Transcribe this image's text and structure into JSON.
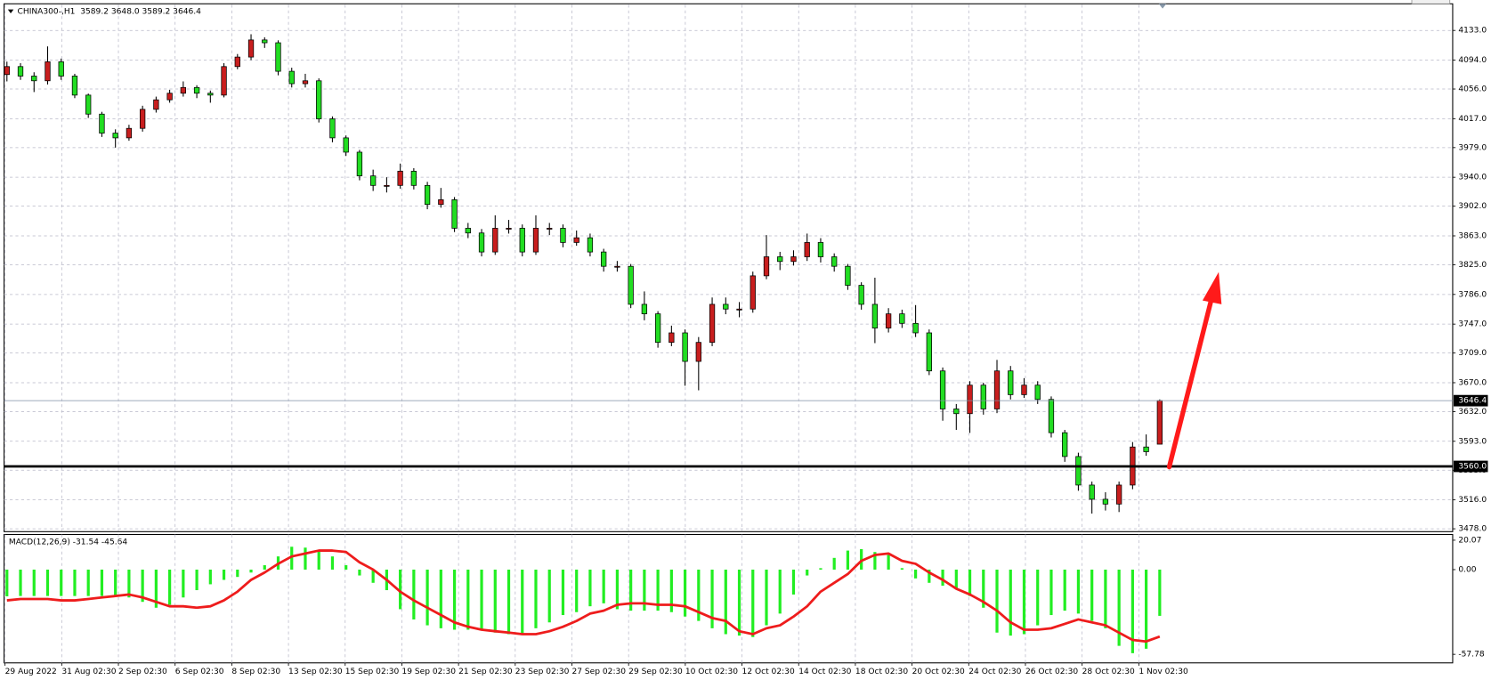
{
  "chart_data": [
    {
      "type": "candlestick",
      "title": "CHINA300-,H1  3589.2 3648.0 3589.2 3646.4",
      "x_labels": [
        "29 Aug 2022",
        "31 Aug 02:30",
        "2 Sep 02:30",
        "6 Sep 02:30",
        "8 Sep 02:30",
        "13 Sep 02:30",
        "15 Sep 02:30",
        "19 Sep 02:30",
        "21 Sep 02:30",
        "23 Sep 02:30",
        "27 Sep 02:30",
        "29 Sep 02:30",
        "10 Oct 02:30",
        "12 Oct 02:30",
        "14 Oct 02:30",
        "18 Oct 02:30",
        "20 Oct 02:30",
        "24 Oct 02:30",
        "26 Oct 02:30",
        "28 Oct 02:30",
        "1 Nov 02:30"
      ],
      "open": [
        4075,
        4085.5,
        4073,
        4066.8,
        4091.8,
        4073,
        4048,
        4023,
        3998,
        3991.8,
        4004.3,
        4029.3,
        4041.8,
        4050.5,
        4058,
        4050.5,
        4048,
        4085.5,
        4098,
        4120.5,
        4116.8,
        4079.3,
        4063,
        4066.8,
        4016.8,
        3991.8,
        3973,
        3941.8,
        3929.3,
        3929.3,
        3948,
        3929.3,
        3904.3,
        3910.5,
        3873,
        3866.8,
        3841.8,
        3873,
        3873,
        3841.8,
        3873,
        3873,
        3854.3,
        3860.5,
        3841.8,
        3823,
        3823,
        3773,
        3760.5,
        3723,
        3735.5,
        3698,
        3723,
        3773,
        3766.8,
        3766.8,
        3810.5,
        3835.5,
        3829.3,
        3835.5,
        3854.3,
        3835.5,
        3823,
        3798,
        3773,
        3741.8,
        3760.5,
        3748,
        3735.5,
        3685.5,
        3635.5,
        3629.3,
        3666.8,
        3635.5,
        3685.5,
        3654.3,
        3666.8,
        3648,
        3604.3,
        3573,
        3535.5,
        3516.8,
        3510.5,
        3535.5,
        3585.5,
        3589.2
      ],
      "high": [
        4092,
        4090,
        4078,
        4112,
        4096,
        4076,
        4050,
        4026,
        4003,
        4009,
        4034,
        4046,
        4055,
        4066,
        4061,
        4054,
        4090,
        4102,
        4128,
        4124,
        4120,
        4084,
        4076,
        4070,
        4020,
        3995,
        3976,
        3950,
        3940,
        3958,
        3952,
        3934,
        3926,
        3914,
        3880,
        3872,
        3890,
        3884,
        3878,
        3890,
        3880,
        3878,
        3870,
        3866,
        3846,
        3830,
        3826,
        3790,
        3764,
        3745,
        3740,
        3730,
        3782,
        3782,
        3776,
        3816,
        3864,
        3842,
        3844,
        3866,
        3860,
        3840,
        3826,
        3802,
        3808,
        3768,
        3766,
        3772,
        3740,
        3690,
        3642,
        3672,
        3670,
        3700,
        3692,
        3676,
        3672,
        3652,
        3608,
        3578,
        3540,
        3526,
        3540,
        3592,
        3602,
        3648.0
      ],
      "low": [
        4066,
        4068,
        4052,
        4062,
        4068,
        4044,
        4018,
        3993,
        3979,
        3988,
        4000,
        4025,
        4038,
        4046,
        4044,
        4038,
        4045,
        4082,
        4094,
        4110,
        4074,
        4058,
        4058,
        4012,
        3986,
        3968,
        3936,
        3922,
        3920,
        3925,
        3924,
        3898,
        3900,
        3868,
        3860,
        3836,
        3838,
        3866,
        3836,
        3838,
        3864,
        3848,
        3850,
        3836,
        3816,
        3816,
        3768,
        3752,
        3716,
        3718,
        3666,
        3660,
        3718,
        3760,
        3756,
        3762,
        3806,
        3818,
        3824,
        3830,
        3828,
        3816,
        3792,
        3766,
        3722,
        3736,
        3742,
        3730,
        3680,
        3620,
        3608,
        3604,
        3628,
        3630,
        3648,
        3650,
        3642,
        3598,
        3566,
        3528,
        3498,
        3502,
        3500,
        3530,
        3574,
        3589.2
      ],
      "close": [
        4085.5,
        4073,
        4066.8,
        4091.8,
        4073,
        4048,
        4023,
        3998,
        3991.8,
        4004.3,
        4029.3,
        4041.8,
        4050.5,
        4058,
        4050.5,
        4048,
        4085.5,
        4098,
        4120.5,
        4116.8,
        4079.3,
        4063,
        4066.8,
        4016.8,
        3991.8,
        3973,
        3941.8,
        3929.3,
        3929.3,
        3948,
        3929.3,
        3904.3,
        3910.5,
        3873,
        3866.8,
        3841.8,
        3873,
        3873,
        3841.8,
        3873,
        3873,
        3854.3,
        3860.5,
        3841.8,
        3823,
        3823,
        3773,
        3760.5,
        3723,
        3735.5,
        3698,
        3723,
        3773,
        3766.8,
        3766.8,
        3810.5,
        3835.5,
        3829.3,
        3835.5,
        3854.3,
        3835.5,
        3823,
        3798,
        3773,
        3741.8,
        3760.5,
        3748,
        3735.5,
        3685.5,
        3635.5,
        3629.3,
        3666.8,
        3635.5,
        3685.5,
        3654.3,
        3666.8,
        3648,
        3604.3,
        3573,
        3535.5,
        3516.8,
        3510.5,
        3535.5,
        3585.5,
        3579.3,
        3646.4
      ],
      "up_color": "#c81e1e",
      "down_color": "#22dd22",
      "ylim": [
        3475.5,
        4166.75
      ],
      "yticks": [
        {
          "value": 4133,
          "label": "4133.0"
        },
        {
          "value": 4094,
          "label": "4094.0"
        },
        {
          "value": 4056,
          "label": "4056.0"
        },
        {
          "value": 4017,
          "label": "4017.0"
        },
        {
          "value": 3979,
          "label": "3979.0"
        },
        {
          "value": 3940,
          "label": "3940.0"
        },
        {
          "value": 3902,
          "label": "3902.0"
        },
        {
          "value": 3863,
          "label": "3863.0"
        },
        {
          "value": 3825,
          "label": "3825.0"
        },
        {
          "value": 3786,
          "label": "3786.0"
        },
        {
          "value": 3747,
          "label": "3747.0"
        },
        {
          "value": 3709,
          "label": "3709.0"
        },
        {
          "value": 3670,
          "label": "3670.0"
        },
        {
          "value": 3632,
          "label": "3632.0"
        },
        {
          "value": 3593,
          "label": "3593.0"
        },
        {
          "value": 3555,
          "label": "3555.0"
        },
        {
          "value": 3516,
          "label": "3516.0"
        },
        {
          "value": 3478,
          "label": "3478.0"
        }
      ],
      "grid": true,
      "hline": {
        "value": 3560,
        "label": "3560.0"
      },
      "last_price": 3646.4
    },
    {
      "type": "macd",
      "title": "MACD(12,26,9) -31.54 -45.64",
      "series": [
        {
          "type": "bar",
          "color": "#22ee22",
          "values": [
            -18.2,
            -18,
            -18,
            -18,
            -18,
            -18,
            -18,
            -18,
            -18,
            -19,
            -22,
            -26,
            -24,
            -19,
            -14,
            -10,
            -7,
            -5,
            -2,
            3,
            9,
            15.6,
            15,
            13,
            9,
            3,
            -4,
            -9,
            -14,
            -27,
            -34,
            -38,
            -40,
            -41,
            -41,
            -41,
            -43,
            -44,
            -44,
            -40,
            -36,
            -31,
            -29,
            -25,
            -23,
            -27,
            -28,
            -28,
            -28,
            -29,
            -32,
            -35,
            -40,
            -44,
            -45,
            -46,
            -38,
            -30,
            -17,
            -4,
            1,
            8,
            13,
            14,
            12,
            10,
            1,
            -6,
            -9,
            -11,
            -13,
            -18,
            -26,
            -43,
            -45,
            -44,
            -38,
            -31,
            -28,
            -30,
            -35,
            -40,
            -52,
            -57,
            -54,
            -31.54
          ]
        },
        {
          "type": "line",
          "color": "#ee1c1c",
          "values": [
            -21,
            -20,
            -20,
            -20,
            -21,
            -21,
            -20,
            -19,
            -18,
            -17,
            -19,
            -22,
            -25,
            -25,
            -26,
            -25,
            -21,
            -15,
            -7,
            -2,
            4,
            9,
            11,
            13,
            13,
            12,
            5,
            0,
            -7,
            -15,
            -21,
            -26,
            -31,
            -36,
            -39,
            -41,
            -42,
            -43,
            -44,
            -44,
            -42,
            -39,
            -35,
            -30,
            -28,
            -24,
            -23,
            -23,
            -24,
            -24,
            -25,
            -29,
            -33,
            -35,
            -42,
            -44,
            -40,
            -38,
            -32,
            -25,
            -15,
            -9,
            -3,
            6,
            10,
            11,
            6,
            4,
            -2,
            -7,
            -13,
            -17,
            -22,
            -28,
            -36,
            -41,
            -41,
            -40,
            -37,
            -34,
            -36,
            -38,
            -43,
            -48,
            -49,
            -45.64
          ]
        }
      ],
      "ylim": [
        -63.62,
        23.96
      ],
      "yticks": [
        20.07,
        {
          "value": 0,
          "label": "0.00"
        },
        -57.78
      ]
    }
  ]
}
